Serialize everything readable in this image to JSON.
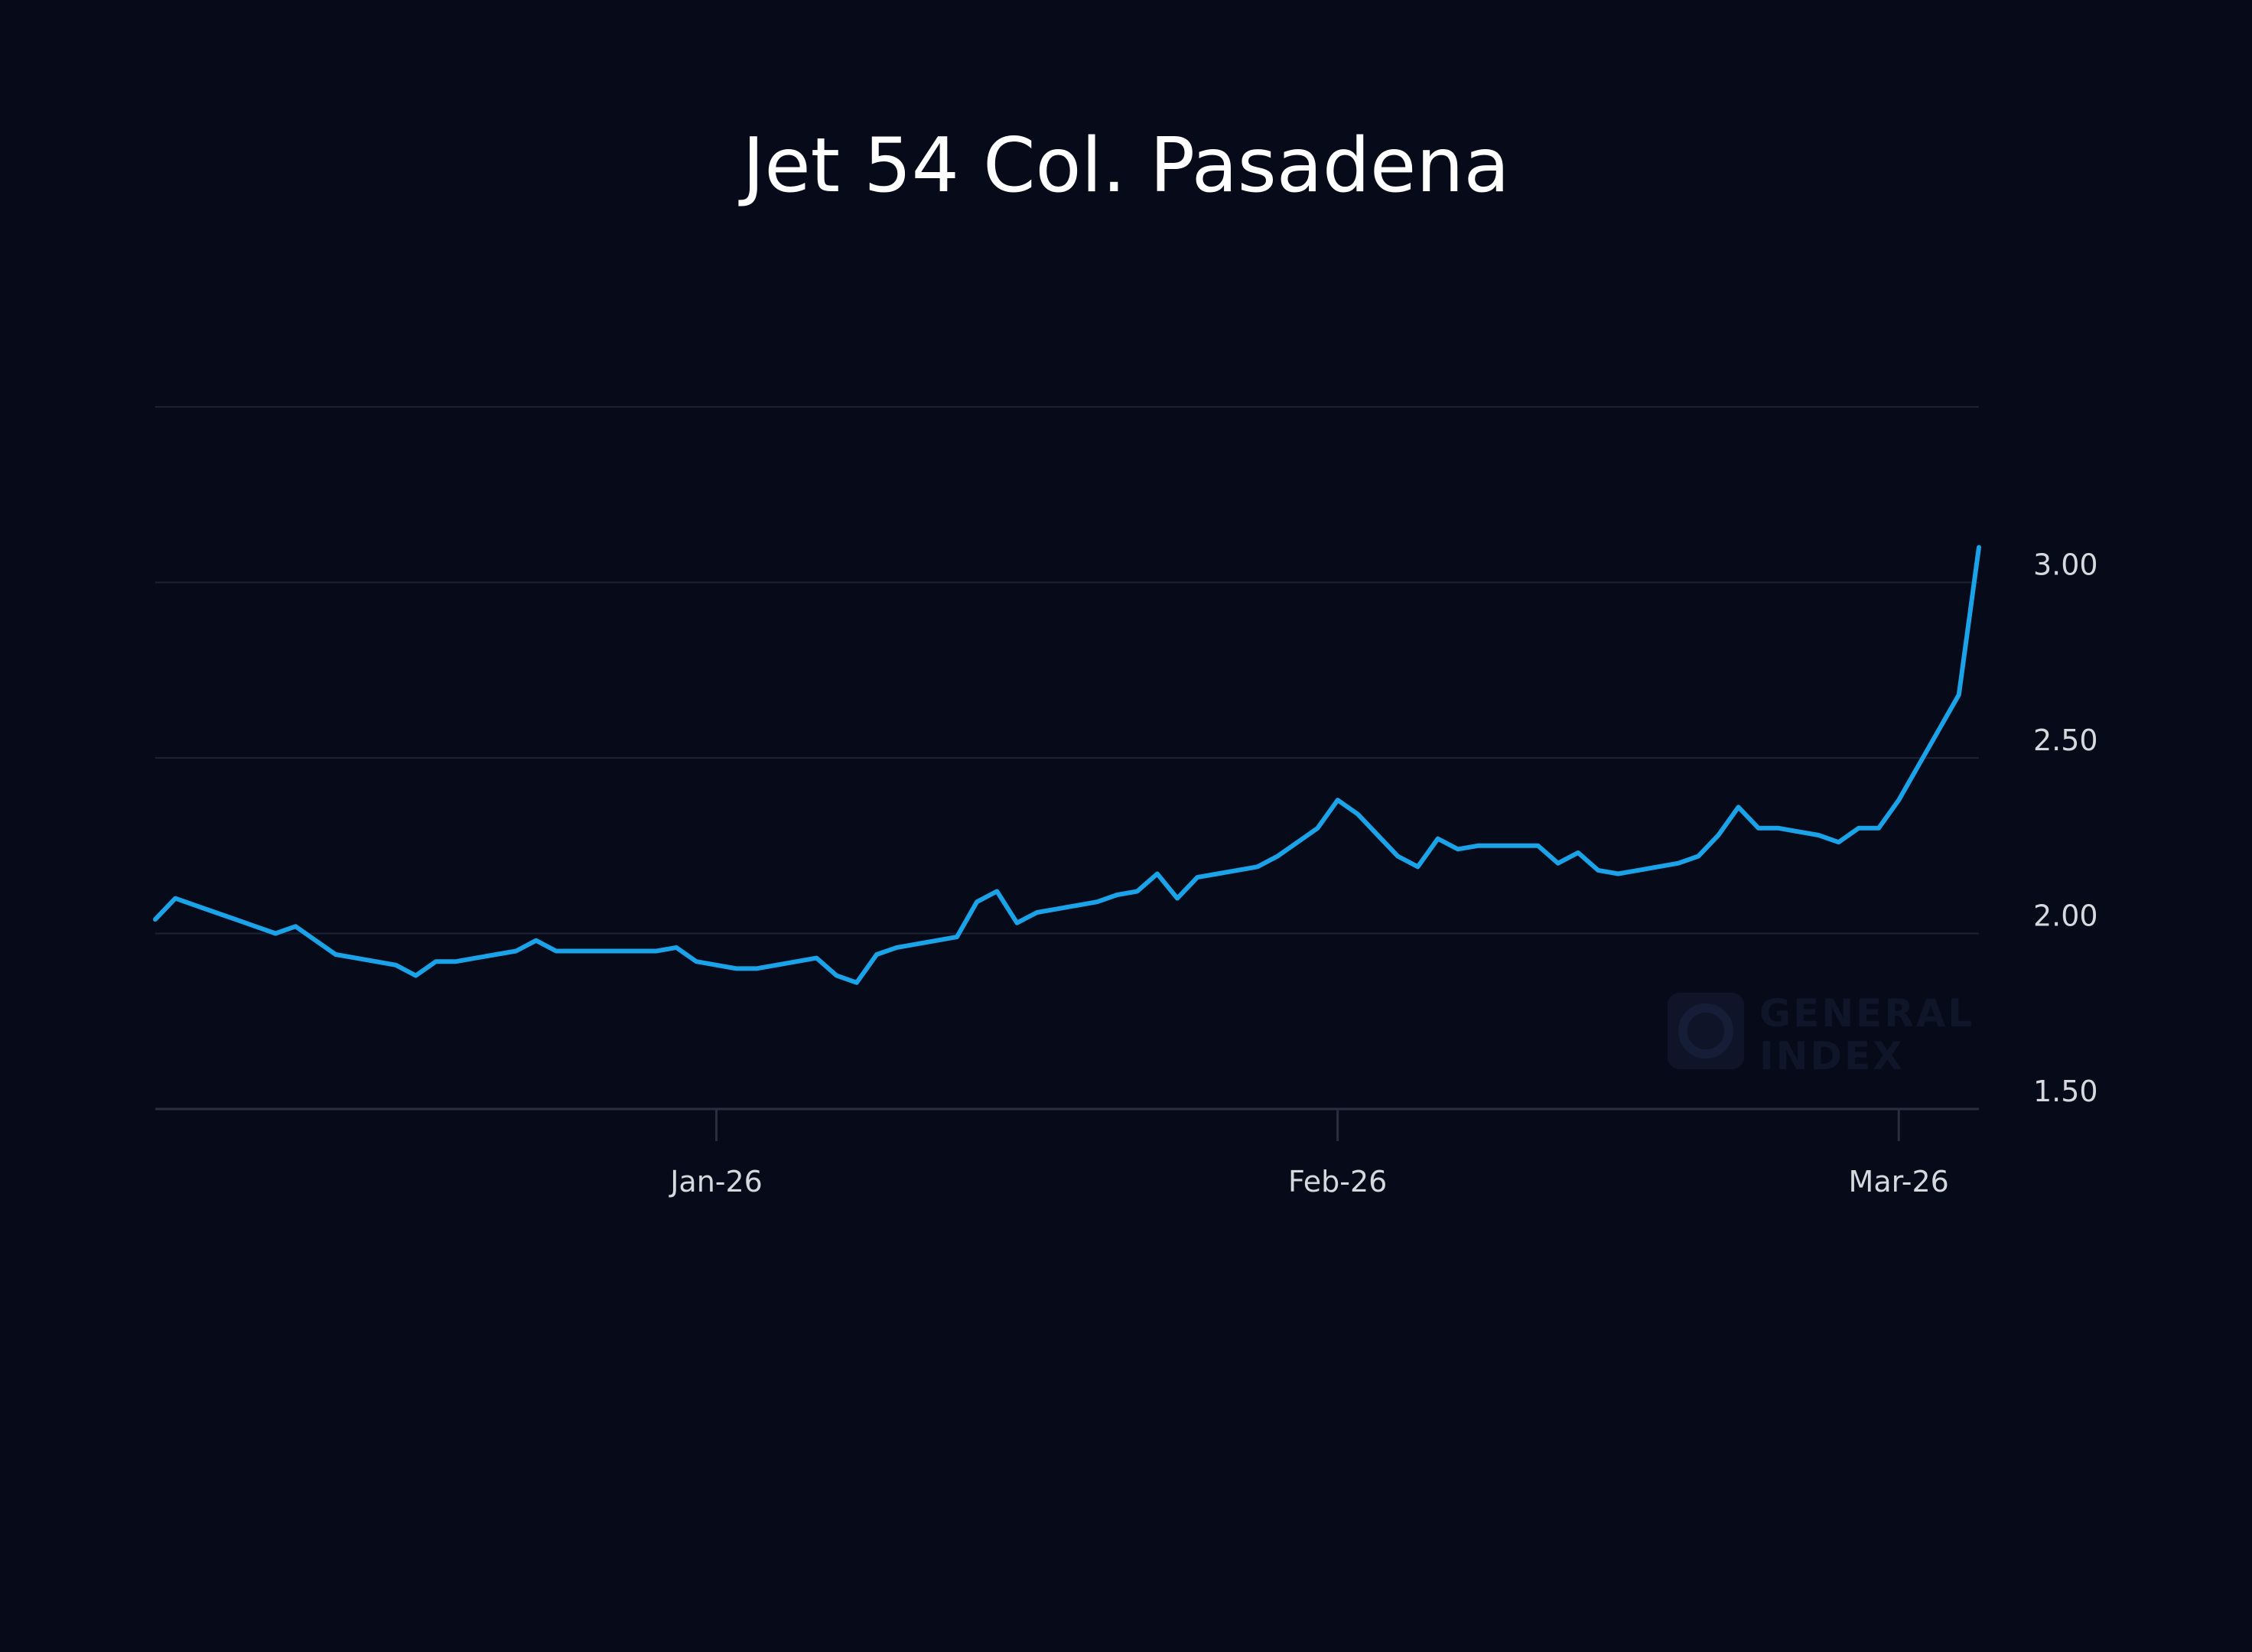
{
  "chart_data": {
    "type": "line",
    "title": "Jet 54 Col. Pasadena",
    "xlabel": "",
    "ylabel": "",
    "ylim": [
      1.5,
      3.5
    ],
    "grid": true,
    "y_ticks": [
      {
        "value": 1.5,
        "label": "1.50"
      },
      {
        "value": 2.0,
        "label": "2.00"
      },
      {
        "value": 2.5,
        "label": "2.50"
      },
      {
        "value": 3.0,
        "label": "3.00"
      }
    ],
    "x_ticks": [
      {
        "index": 28,
        "label": "Jan-26"
      },
      {
        "index": 59,
        "label": "Feb-26"
      },
      {
        "index": 87,
        "label": "Mar-26"
      }
    ],
    "series": [
      {
        "name": "Jet 54 Col. Pasadena",
        "color": "#1aa3e8",
        "values": [
          2.04,
          2.1,
          2.08,
          2.06,
          2.04,
          2.02,
          2.0,
          2.02,
          1.98,
          1.94,
          1.93,
          1.92,
          1.91,
          1.88,
          1.92,
          1.92,
          1.93,
          1.94,
          1.95,
          1.98,
          1.95,
          1.95,
          1.95,
          1.95,
          1.95,
          1.95,
          1.96,
          1.92,
          1.91,
          1.9,
          1.9,
          1.91,
          1.92,
          1.93,
          1.88,
          1.86,
          1.94,
          1.96,
          1.97,
          1.98,
          1.99,
          2.09,
          2.12,
          2.03,
          2.06,
          2.07,
          2.08,
          2.09,
          2.11,
          2.12,
          2.17,
          2.1,
          2.16,
          2.17,
          2.18,
          2.19,
          2.22,
          2.26,
          2.3,
          2.38,
          2.34,
          2.28,
          2.22,
          2.19,
          2.27,
          2.24,
          2.25,
          2.25,
          2.25,
          2.25,
          2.2,
          2.23,
          2.18,
          2.17,
          2.18,
          2.19,
          2.2,
          2.22,
          2.28,
          2.36,
          2.3,
          2.3,
          2.29,
          2.28,
          2.26,
          2.3,
          2.3,
          2.38,
          2.48,
          2.58,
          2.68,
          3.1
        ]
      }
    ]
  },
  "watermark": {
    "line1": "GENERAL",
    "line2": "INDEX"
  }
}
